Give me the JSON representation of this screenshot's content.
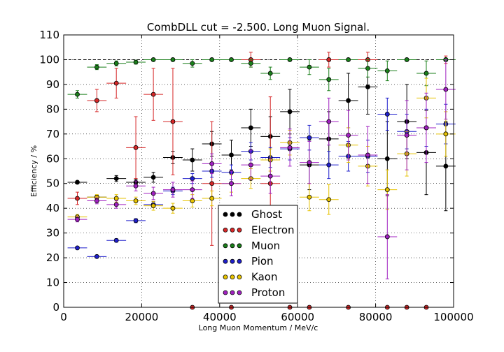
{
  "chart_data": {
    "type": "scatter",
    "title": "CombDLL cut = -2.500. Long Muon Signal.",
    "xlabel": "Long Muon Momentum / MeV/c",
    "ylabel": "Efficiency / %",
    "xlim": [
      0,
      100000
    ],
    "ylim": [
      0,
      110
    ],
    "xticks": [
      0,
      20000,
      40000,
      60000,
      80000,
      100000
    ],
    "yticks": [
      0,
      10,
      20,
      30,
      40,
      50,
      60,
      70,
      80,
      90,
      100,
      110
    ],
    "grid": true,
    "reference_line_y": 100,
    "legend_position": "lower-center",
    "bin_half_width": 2500,
    "series": [
      {
        "name": "Ghost",
        "color": "#000000",
        "points": [
          {
            "x": 3500,
            "y": 50.5,
            "yerr": 0.5
          },
          {
            "x": 8500,
            "y": 44.5,
            "yerr": 0.7
          },
          {
            "x": 13500,
            "y": 52.0,
            "yerr": 1.2
          },
          {
            "x": 18500,
            "y": 50.5,
            "yerr": 1.2
          },
          {
            "x": 23000,
            "y": 52.5,
            "yerr": 2.0
          },
          {
            "x": 28000,
            "y": 60.5,
            "yerr": 2.5
          },
          {
            "x": 33000,
            "y": 59.5,
            "yerr": 4.5
          },
          {
            "x": 38000,
            "y": 66.0,
            "yerr": 5.0
          },
          {
            "x": 43000,
            "y": 61.5,
            "yerr": 6.0
          },
          {
            "x": 48000,
            "y": 72.5,
            "yerr": 7.5
          },
          {
            "x": 53000,
            "y": 69.0,
            "yerr": 8.0
          },
          {
            "x": 58000,
            "y": 79.0,
            "yerr": 9.0
          },
          {
            "x": 63000,
            "y": 57.5,
            "yerr": 10.0
          },
          {
            "x": 68000,
            "y": 68.0,
            "yerr": 11.0
          },
          {
            "x": 73000,
            "y": 83.5,
            "yerr": 11.0
          },
          {
            "x": 78000,
            "y": 89.0,
            "yerr": 11.0
          },
          {
            "x": 83000,
            "y": 60.0,
            "yerr": 15.0
          },
          {
            "x": 88000,
            "y": 75.0,
            "yerr": 15.0
          },
          {
            "x": 93000,
            "y": 62.5,
            "yerr": 17.0
          },
          {
            "x": 98000,
            "y": 57.0,
            "yerr": 18.0
          }
        ]
      },
      {
        "name": "Electron",
        "color": "#d62728",
        "points": [
          {
            "x": 3500,
            "y": 44.0,
            "yerr": 2.5
          },
          {
            "x": 8500,
            "y": 83.5,
            "yerr": 4.5
          },
          {
            "x": 13500,
            "y": 90.5,
            "yerr": 6.0
          },
          {
            "x": 18500,
            "y": 64.5,
            "yerr": 12.5
          },
          {
            "x": 23000,
            "y": 86.0,
            "yerr": 10.5
          },
          {
            "x": 28000,
            "y": 75.0,
            "yerr": 21.5
          },
          {
            "x": 33000,
            "y": 0.0,
            "yerr": 0.0
          },
          {
            "x": 38000,
            "y": 50.0,
            "yerr": 25.0
          },
          {
            "x": 43000,
            "y": 0.0,
            "yerr": 0.0
          },
          {
            "x": 48000,
            "y": 100.0,
            "yerr": 3.0
          },
          {
            "x": 53000,
            "y": 50.0,
            "yerr": 35.0
          },
          {
            "x": 58000,
            "y": 0.0,
            "yerr": 0.0
          },
          {
            "x": 63000,
            "y": 0.0,
            "yerr": 0.0
          },
          {
            "x": 68000,
            "y": 100.0,
            "yerr": 3.0
          },
          {
            "x": 73000,
            "y": 0.0,
            "yerr": 0.0
          },
          {
            "x": 78000,
            "y": 100.0,
            "yerr": 3.0
          },
          {
            "x": 83000,
            "y": 0.0,
            "yerr": 0.0
          },
          {
            "x": 88000,
            "y": 0.0,
            "yerr": 0.0
          },
          {
            "x": 93000,
            "y": 0.0,
            "yerr": 0.0
          },
          {
            "x": 98000,
            "y": 100.0,
            "yerr": 1.5
          }
        ]
      },
      {
        "name": "Muon",
        "color": "#1a7f1a",
        "points": [
          {
            "x": 3500,
            "y": 86.0,
            "yerr": 1.5
          },
          {
            "x": 8500,
            "y": 97.0,
            "yerr": 1.0
          },
          {
            "x": 13500,
            "y": 98.5,
            "yerr": 1.0
          },
          {
            "x": 18500,
            "y": 99.0,
            "yerr": 0.8
          },
          {
            "x": 23000,
            "y": 100.0,
            "yerr": 0.3
          },
          {
            "x": 28000,
            "y": 100.0,
            "yerr": 0.3
          },
          {
            "x": 33000,
            "y": 98.5,
            "yerr": 1.5
          },
          {
            "x": 38000,
            "y": 100.0,
            "yerr": 0.3
          },
          {
            "x": 43000,
            "y": 100.0,
            "yerr": 0.3
          },
          {
            "x": 48000,
            "y": 98.5,
            "yerr": 1.5
          },
          {
            "x": 53000,
            "y": 94.5,
            "yerr": 2.5
          },
          {
            "x": 58000,
            "y": 100.0,
            "yerr": 0.3
          },
          {
            "x": 63000,
            "y": 97.0,
            "yerr": 3.0
          },
          {
            "x": 68000,
            "y": 92.0,
            "yerr": 4.5
          },
          {
            "x": 73000,
            "y": 100.0,
            "yerr": 0.3
          },
          {
            "x": 78000,
            "y": 96.5,
            "yerr": 3.5
          },
          {
            "x": 83000,
            "y": 95.5,
            "yerr": 4.0
          },
          {
            "x": 88000,
            "y": 100.0,
            "yerr": 0.3
          },
          {
            "x": 93000,
            "y": 94.5,
            "yerr": 5.0
          },
          {
            "x": 98000,
            "y": 100.0,
            "yerr": 0.3
          }
        ]
      },
      {
        "name": "Pion",
        "color": "#1f1fcc",
        "points": [
          {
            "x": 3500,
            "y": 24.0,
            "yerr": 0.5
          },
          {
            "x": 8500,
            "y": 20.5,
            "yerr": 0.5
          },
          {
            "x": 13500,
            "y": 27.0,
            "yerr": 0.7
          },
          {
            "x": 18500,
            "y": 35.0,
            "yerr": 0.8
          },
          {
            "x": 23000,
            "y": 41.5,
            "yerr": 1.2
          },
          {
            "x": 28000,
            "y": 47.0,
            "yerr": 1.5
          },
          {
            "x": 33000,
            "y": 52.0,
            "yerr": 2.0
          },
          {
            "x": 38000,
            "y": 55.0,
            "yerr": 2.5
          },
          {
            "x": 43000,
            "y": 54.5,
            "yerr": 3.0
          },
          {
            "x": 48000,
            "y": 63.0,
            "yerr": 3.5
          },
          {
            "x": 53000,
            "y": 60.5,
            "yerr": 4.0
          },
          {
            "x": 58000,
            "y": 64.0,
            "yerr": 4.5
          },
          {
            "x": 63000,
            "y": 68.5,
            "yerr": 5.0
          },
          {
            "x": 68000,
            "y": 57.5,
            "yerr": 5.5
          },
          {
            "x": 73000,
            "y": 61.0,
            "yerr": 6.0
          },
          {
            "x": 78000,
            "y": 61.0,
            "yerr": 6.5
          },
          {
            "x": 83000,
            "y": 78.0,
            "yerr": 6.5
          },
          {
            "x": 88000,
            "y": 71.0,
            "yerr": 7.0
          },
          {
            "x": 93000,
            "y": 72.5,
            "yerr": 7.5
          },
          {
            "x": 98000,
            "y": 74.0,
            "yerr": 8.0
          }
        ]
      },
      {
        "name": "Kaon",
        "color": "#e6c200",
        "points": [
          {
            "x": 3500,
            "y": 36.5,
            "yerr": 1.0
          },
          {
            "x": 8500,
            "y": 44.5,
            "yerr": 1.0
          },
          {
            "x": 13500,
            "y": 44.0,
            "yerr": 1.5
          },
          {
            "x": 18500,
            "y": 43.0,
            "yerr": 1.5
          },
          {
            "x": 23000,
            "y": 41.0,
            "yerr": 1.8
          },
          {
            "x": 28000,
            "y": 40.0,
            "yerr": 2.0
          },
          {
            "x": 33000,
            "y": 43.0,
            "yerr": 2.5
          },
          {
            "x": 38000,
            "y": 44.0,
            "yerr": 3.0
          },
          {
            "x": 43000,
            "y": 50.0,
            "yerr": 3.5
          },
          {
            "x": 48000,
            "y": 52.0,
            "yerr": 4.0
          },
          {
            "x": 53000,
            "y": 59.5,
            "yerr": 4.5
          },
          {
            "x": 58000,
            "y": 66.5,
            "yerr": 5.0
          },
          {
            "x": 63000,
            "y": 44.5,
            "yerr": 5.5
          },
          {
            "x": 68000,
            "y": 43.5,
            "yerr": 6.0
          },
          {
            "x": 73000,
            "y": 65.5,
            "yerr": 7.0
          },
          {
            "x": 78000,
            "y": 57.0,
            "yerr": 8.0
          },
          {
            "x": 83000,
            "y": 47.5,
            "yerr": 8.0
          },
          {
            "x": 88000,
            "y": 62.0,
            "yerr": 9.0
          },
          {
            "x": 93000,
            "y": 84.5,
            "yerr": 8.0
          },
          {
            "x": 98000,
            "y": 70.0,
            "yerr": 9.0
          }
        ]
      },
      {
        "name": "Proton",
        "color": "#a020c0",
        "points": [
          {
            "x": 3500,
            "y": 35.5,
            "yerr": 1.0
          },
          {
            "x": 8500,
            "y": 43.0,
            "yerr": 1.2
          },
          {
            "x": 13500,
            "y": 41.5,
            "yerr": 1.5
          },
          {
            "x": 18500,
            "y": 49.0,
            "yerr": 2.0
          },
          {
            "x": 23000,
            "y": 46.0,
            "yerr": 2.5
          },
          {
            "x": 28000,
            "y": 47.5,
            "yerr": 3.0
          },
          {
            "x": 33000,
            "y": 47.5,
            "yerr": 3.5
          },
          {
            "x": 38000,
            "y": 58.0,
            "yerr": 4.0
          },
          {
            "x": 43000,
            "y": 50.0,
            "yerr": 5.0
          },
          {
            "x": 48000,
            "y": 57.5,
            "yerr": 6.0
          },
          {
            "x": 53000,
            "y": 53.0,
            "yerr": 7.0
          },
          {
            "x": 58000,
            "y": 64.5,
            "yerr": 7.5
          },
          {
            "x": 63000,
            "y": 58.5,
            "yerr": 8.5
          },
          {
            "x": 68000,
            "y": 75.0,
            "yerr": 9.5
          },
          {
            "x": 73000,
            "y": 69.5,
            "yerr": 10.0
          },
          {
            "x": 78000,
            "y": 61.5,
            "yerr": 11.5
          },
          {
            "x": 83000,
            "y": 28.5,
            "yerr": 17.0
          },
          {
            "x": 88000,
            "y": 69.5,
            "yerr": 14.0
          },
          {
            "x": 93000,
            "y": 72.5,
            "yerr": 14.0
          },
          {
            "x": 98000,
            "y": 88.0,
            "yerr": 12.0
          }
        ]
      }
    ]
  }
}
